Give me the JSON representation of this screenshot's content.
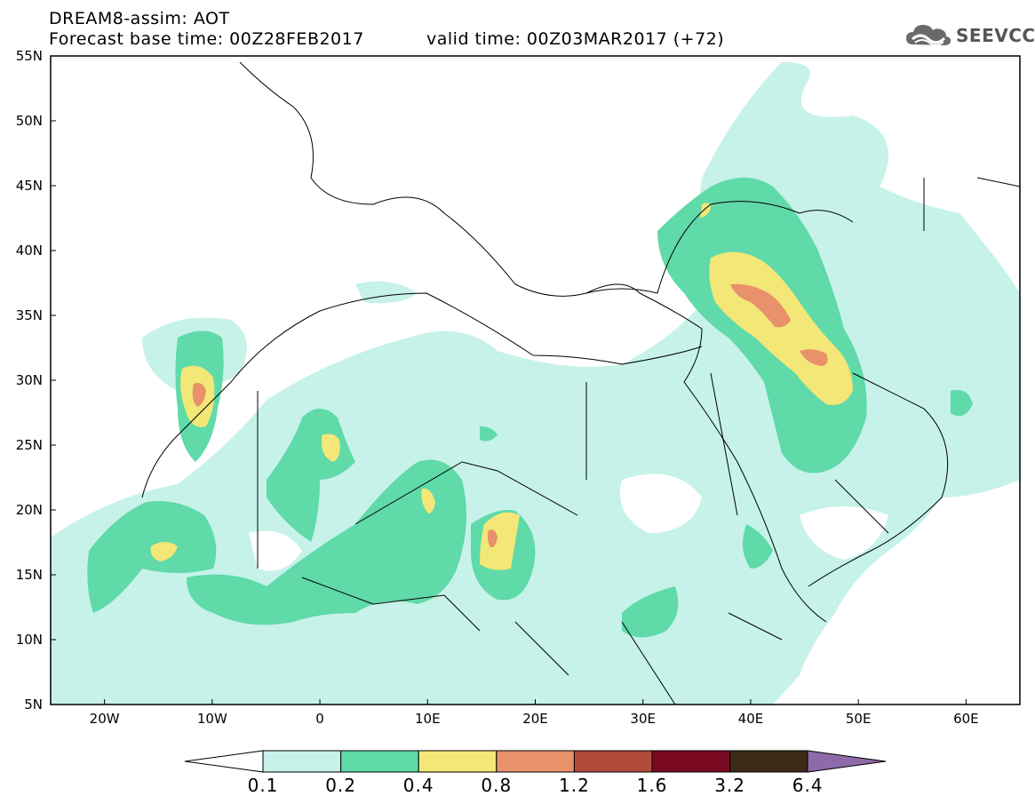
{
  "header": {
    "title": "DREAM8-assim: AOT",
    "forecast_base": "Forecast base time: 00Z28FEB2017",
    "valid_time": "valid time: 00Z03MAR2017 (+72)"
  },
  "logo": {
    "icon": "cloud-icon",
    "text": "SEEVCCC"
  },
  "axes": {
    "lat_labels": [
      "55N",
      "50N",
      "45N",
      "40N",
      "35N",
      "30N",
      "25N",
      "20N",
      "15N",
      "10N",
      "5N"
    ],
    "lon_labels": [
      "20W",
      "10W",
      "0",
      "10E",
      "20E",
      "30E",
      "40E",
      "50E",
      "60E"
    ],
    "lat_range": [
      5,
      55
    ],
    "lon_range": [
      -25,
      65
    ]
  },
  "colorbar": {
    "labels": [
      "0.1",
      "0.2",
      "0.4",
      "0.8",
      "1.2",
      "1.6",
      "3.2",
      "6.4"
    ],
    "colors": [
      "#c6f2ea",
      "#5fdaa8",
      "#f3e777",
      "#e8916a",
      "#b24a3a",
      "#7a0a22",
      "#3d2b17"
    ],
    "under_color": "#ffffff",
    "over_color": "#8f6aa8"
  },
  "field_colors": {
    "light": "#c6f2ea",
    "green": "#5fdaa8",
    "yellow": "#f3e777",
    "orange": "#e8916a",
    "red": "#b24a3a"
  }
}
